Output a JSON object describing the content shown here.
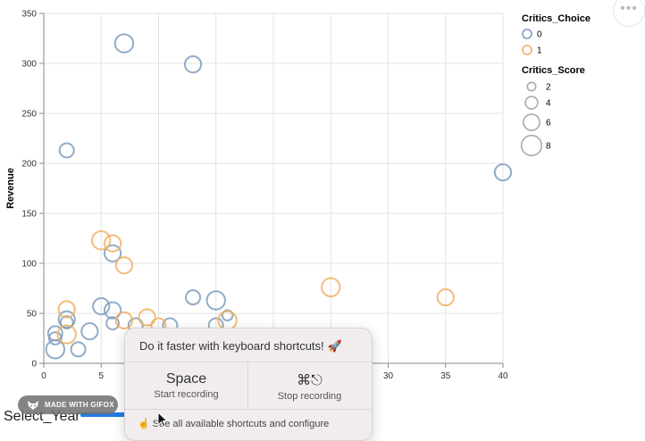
{
  "chart_data": {
    "type": "scatter",
    "xlabel": "",
    "ylabel": "Revenue",
    "xlim": [
      0,
      40
    ],
    "ylim": [
      0,
      350
    ],
    "x_ticks": [
      "0",
      "5",
      "10",
      "15",
      "20",
      "25",
      "30",
      "35",
      "40"
    ],
    "y_ticks": [
      "0",
      "50",
      "100",
      "150",
      "200",
      "250",
      "300",
      "350"
    ],
    "grid": true,
    "legend_placement": "right",
    "colors": {
      "0": "#7f9cc0",
      "1": "#f0b060"
    },
    "color_legend": {
      "title": "Critics_Choice",
      "entries": [
        "0",
        "1"
      ]
    },
    "size_legend": {
      "title": "Critics_Score",
      "entries": [
        2,
        4,
        6,
        8
      ]
    },
    "series": [
      {
        "name": "0",
        "points": [
          {
            "x": 7,
            "y": 320,
            "s": 7
          },
          {
            "x": 13,
            "y": 299,
            "s": 6
          },
          {
            "x": 40,
            "y": 191,
            "s": 6
          },
          {
            "x": 2,
            "y": 213,
            "s": 5
          },
          {
            "x": 6,
            "y": 110,
            "s": 6
          },
          {
            "x": 13,
            "y": 66,
            "s": 5
          },
          {
            "x": 15,
            "y": 63,
            "s": 7
          },
          {
            "x": 5,
            "y": 57,
            "s": 6
          },
          {
            "x": 6,
            "y": 53,
            "s": 6
          },
          {
            "x": 16,
            "y": 48,
            "s": 3
          },
          {
            "x": 2,
            "y": 44,
            "s": 6
          },
          {
            "x": 2,
            "y": 41,
            "s": 4
          },
          {
            "x": 6,
            "y": 40,
            "s": 4
          },
          {
            "x": 8,
            "y": 38,
            "s": 5
          },
          {
            "x": 11,
            "y": 38,
            "s": 5
          },
          {
            "x": 15,
            "y": 38,
            "s": 5
          },
          {
            "x": 4,
            "y": 32,
            "s": 6
          },
          {
            "x": 1,
            "y": 30,
            "s": 5
          },
          {
            "x": 1,
            "y": 25,
            "s": 4
          },
          {
            "x": 1,
            "y": 14,
            "s": 7
          },
          {
            "x": 3,
            "y": 14,
            "s": 5
          }
        ]
      },
      {
        "name": "1",
        "points": [
          {
            "x": 5,
            "y": 123,
            "s": 7
          },
          {
            "x": 6,
            "y": 120,
            "s": 6
          },
          {
            "x": 7,
            "y": 98,
            "s": 6
          },
          {
            "x": 2,
            "y": 54,
            "s": 6
          },
          {
            "x": 2,
            "y": 29,
            "s": 7
          },
          {
            "x": 7,
            "y": 43,
            "s": 6
          },
          {
            "x": 9,
            "y": 46,
            "s": 6
          },
          {
            "x": 10,
            "y": 38,
            "s": 5
          },
          {
            "x": 16,
            "y": 43,
            "s": 7
          },
          {
            "x": 25,
            "y": 76,
            "s": 7
          },
          {
            "x": 35,
            "y": 66,
            "s": 6
          }
        ]
      }
    ]
  },
  "toolbar": {
    "more_label": "•••"
  },
  "controls": {
    "select_year_label": "Select_Year"
  },
  "badge": {
    "text": "MADE WITH GIFOX"
  },
  "popup": {
    "title": "Do it faster with keyboard shortcuts!",
    "title_emoji": "🚀",
    "start_key": "Space",
    "start_action": "Start recording",
    "stop_key": "⌘⎋",
    "stop_action": "Stop recording",
    "footer": "☝ See all available shortcuts and configure"
  }
}
